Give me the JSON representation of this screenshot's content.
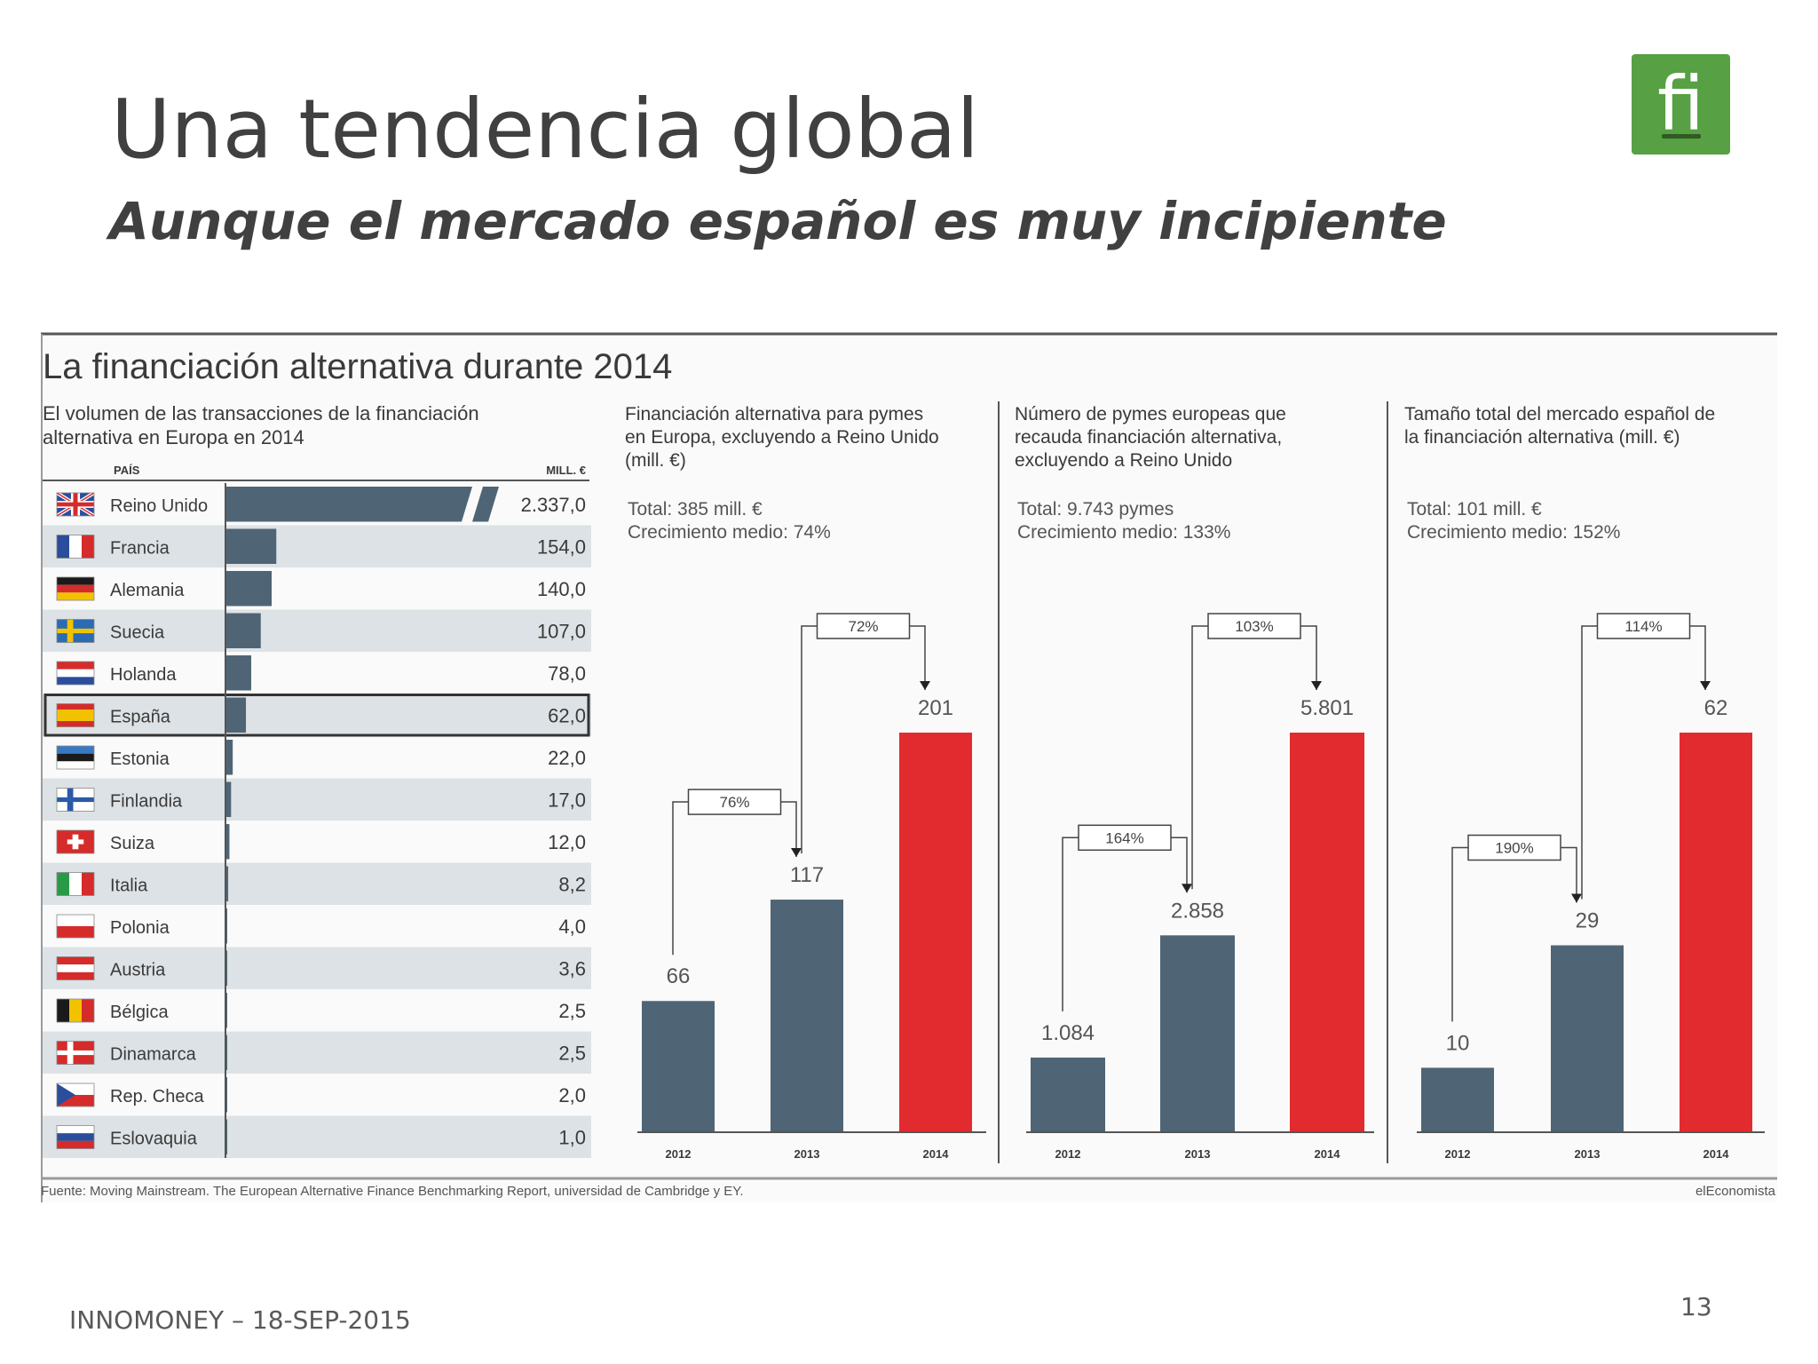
{
  "slide": {
    "title": "Una tendencia global",
    "subtitle": "Aunque el mercado español es muy incipiente",
    "logo_text": "fi",
    "footer": "INNOMONEY – 18-SEP-2015",
    "page_number": "13"
  },
  "infographic": {
    "title": "La financiación alternativa durante 2014",
    "source": "Fuente: Moving Mainstream. The European Alternative Finance Benchmarking Report, universidad de Cambridge y EY.",
    "publisher": "elEconomista"
  },
  "colors": {
    "grey_bar": "#4f6575",
    "red_bar": "#e22b2e",
    "row_band": "#dde2e6",
    "text": "#3a3a3a"
  },
  "chart_data": [
    {
      "type": "bar",
      "orientation": "horizontal",
      "title": "El volumen de las transacciones de la financiación alternativa en Europa en 2014",
      "title_lines": [
        "El volumen de las transacciones de la financiación",
        "alternativa en Europa en 2014"
      ],
      "col_country": "PAÍS",
      "col_value": "MILL. €",
      "categories": [
        "Reino Unido",
        "Francia",
        "Alemania",
        "Suecia",
        "Holanda",
        "España",
        "Estonia",
        "Finlandia",
        "Suiza",
        "Italia",
        "Polonia",
        "Austria",
        "Bélgica",
        "Dinamarca",
        "Rep. Checa",
        "Eslovaquia"
      ],
      "values": [
        2337.0,
        154.0,
        140.0,
        107.0,
        78.0,
        62.0,
        22.0,
        17.0,
        12.0,
        8.2,
        4.0,
        3.6,
        2.5,
        2.5,
        2.0,
        1.0
      ],
      "value_labels": [
        "2.337,0",
        "154,0",
        "140,0",
        "107,0",
        "78,0",
        "62,0",
        "22,0",
        "17,0",
        "12,0",
        "8,2",
        "4,0",
        "3,6",
        "2,5",
        "2,5",
        "2,0",
        "1,0"
      ],
      "highlight": "España",
      "axis_break": "Reino Unido",
      "flags": [
        {
          "type": "uk"
        },
        {
          "type": "v",
          "colors": [
            "#2a4d9c",
            "#ffffff",
            "#d62b2b"
          ]
        },
        {
          "type": "h",
          "colors": [
            "#1a1a1a",
            "#d62b2b",
            "#f2c200"
          ]
        },
        {
          "type": "nordic",
          "bg": "#2a6bb3",
          "cross": "#f2c200"
        },
        {
          "type": "h",
          "colors": [
            "#d62b2b",
            "#ffffff",
            "#2a4d9c"
          ]
        },
        {
          "type": "h3",
          "colors": [
            "#d62b2b",
            "#f2c200",
            "#d62b2b"
          ]
        },
        {
          "type": "h",
          "colors": [
            "#3a78c4",
            "#1a1a1a",
            "#ffffff"
          ]
        },
        {
          "type": "nordic",
          "bg": "#ffffff",
          "cross": "#2a5aa8"
        },
        {
          "type": "swiss",
          "bg": "#d62b2b",
          "cross": "#ffffff"
        },
        {
          "type": "v",
          "colors": [
            "#2b9a48",
            "#ffffff",
            "#d62b2b"
          ]
        },
        {
          "type": "h2",
          "colors": [
            "#ffffff",
            "#d62b2b"
          ]
        },
        {
          "type": "h",
          "colors": [
            "#d62b2b",
            "#ffffff",
            "#d62b2b"
          ]
        },
        {
          "type": "v",
          "colors": [
            "#1a1a1a",
            "#f2c200",
            "#d62b2b"
          ]
        },
        {
          "type": "nordic",
          "bg": "#d62b2b",
          "cross": "#ffffff"
        },
        {
          "type": "czech"
        },
        {
          "type": "h",
          "colors": [
            "#ffffff",
            "#2a4d9c",
            "#d62b2b"
          ]
        }
      ]
    },
    {
      "type": "bar",
      "title": "Financiación alternativa para pymes en Europa, excluyendo a Reino Unido (mill. €)",
      "title_lines": [
        "Financiación alternativa para pymes",
        "en Europa, excluyendo a Reino Unido",
        "(mill. €)"
      ],
      "total": "Total: 385 mill. €",
      "growth": "Crecimiento medio: 74%",
      "categories": [
        "2012",
        "2013",
        "2014"
      ],
      "values": [
        66,
        117,
        201
      ],
      "value_labels": [
        "66",
        "117",
        "201"
      ],
      "growth_labels": [
        "76%",
        "72%"
      ]
    },
    {
      "type": "bar",
      "title": "Número de pymes europeas que recauda financiación alternativa, excluyendo a Reino Unido",
      "title_lines": [
        "Número de pymes europeas que",
        "recauda financiación alternativa,",
        "excluyendo a Reino Unido"
      ],
      "total": "Total: 9.743 pymes",
      "growth": "Crecimiento medio: 133%",
      "categories": [
        "2012",
        "2013",
        "2014"
      ],
      "values": [
        1084,
        2858,
        5801
      ],
      "value_labels": [
        "1.084",
        "2.858",
        "5.801"
      ],
      "growth_labels": [
        "164%",
        "103%"
      ]
    },
    {
      "type": "bar",
      "title": "Tamaño total del mercado español de la financiación alternativa (mill. €)",
      "title_lines": [
        "Tamaño total del mercado español de",
        "la financiación alternativa (mill. €)"
      ],
      "total": "Total: 101 mill. €",
      "growth": "Crecimiento medio: 152%",
      "categories": [
        "2012",
        "2013",
        "2014"
      ],
      "values": [
        10,
        29,
        62
      ],
      "value_labels": [
        "10",
        "29",
        "62"
      ],
      "growth_labels": [
        "190%",
        "114%"
      ]
    }
  ]
}
